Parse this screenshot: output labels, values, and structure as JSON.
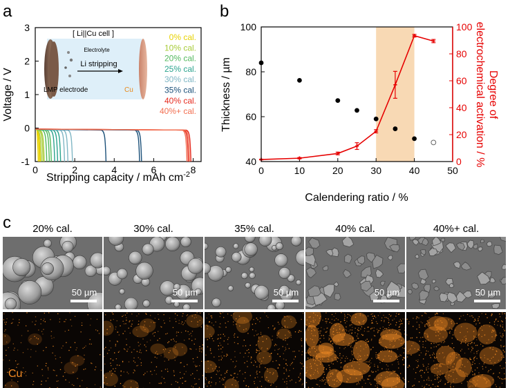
{
  "panel_labels": {
    "a": "a",
    "b": "b",
    "c": "c"
  },
  "panel_a": {
    "inset": {
      "cell_title": "[ Li||Cu cell ]",
      "electrolyte_label": "Electrolyte",
      "process_label": "Li stripping",
      "electrode_label": "LMP electrode",
      "cu_label": "Cu"
    },
    "legend": [
      {
        "label": "0% cal.",
        "color": "#e8d200"
      },
      {
        "label": "10% cal.",
        "color": "#a8cc3a"
      },
      {
        "label": "20% cal.",
        "color": "#52b85e"
      },
      {
        "label": "25% cal.",
        "color": "#2aa38d"
      },
      {
        "label": "30% cal.",
        "color": "#7fb6c4"
      },
      {
        "label": "35% cal.",
        "color": "#1a4f78"
      },
      {
        "label": "40% cal.",
        "color": "#e62a1e"
      },
      {
        "label": "40%+ cal.",
        "color": "#f26f51"
      }
    ]
  },
  "chart_data": [
    {
      "type": "line",
      "xlabel": "Stripping capacity / mAh cm",
      "xlabel_sup": "-2",
      "ylabel": "Voltage / V",
      "xlim": [
        0,
        8.4
      ],
      "ylim": [
        -1,
        3
      ],
      "xticks": [
        "0",
        "2",
        "4",
        "6",
        "8"
      ],
      "yticks": [
        "-1",
        "0",
        "1",
        "2",
        "3"
      ],
      "series": [
        {
          "name": "0% cal.",
          "curves": [
            0.12,
            0.18,
            0.22
          ]
        },
        {
          "name": "10% cal.",
          "curves": [
            0.28,
            0.36,
            0.42
          ]
        },
        {
          "name": "20% cal.",
          "curves": [
            0.55,
            0.68,
            0.78
          ]
        },
        {
          "name": "25% cal.",
          "curves": [
            0.95,
            1.1,
            1.25
          ]
        },
        {
          "name": "30% cal.",
          "curves": [
            1.45,
            1.62,
            1.85
          ]
        },
        {
          "name": "35% cal.",
          "curves": [
            3.55,
            5.25,
            5.35
          ]
        },
        {
          "name": "40% cal.",
          "curves": [
            7.72,
            7.85
          ]
        },
        {
          "name": "40%+ cal.",
          "curves": [
            7.65,
            7.78
          ]
        }
      ]
    },
    {
      "type": "scatter",
      "xlabel": "Calendering ratio / %",
      "ylabel": "Thickness / µm",
      "y2label_line1": "Degree of",
      "y2label_line2": "electrochemical activation / %",
      "xlim": [
        0,
        50
      ],
      "ylim": [
        40,
        100
      ],
      "y2lim": [
        0,
        100
      ],
      "xticks": [
        "0",
        "10",
        "20",
        "30",
        "40",
        "50"
      ],
      "yticks": [
        "40",
        "60",
        "80",
        "100"
      ],
      "y2ticks": [
        "0",
        "20",
        "40",
        "60",
        "80",
        "100"
      ],
      "highlight_range": [
        30,
        40
      ],
      "thickness": {
        "x": [
          0,
          10,
          20,
          25,
          30,
          35,
          40
        ],
        "y": [
          84,
          76.2,
          67.2,
          62.8,
          59,
          54.6,
          50.2
        ]
      },
      "thickness_open": {
        "x": [
          45
        ],
        "y": [
          48.5
        ]
      },
      "activation": {
        "x": [
          0,
          10,
          20,
          25,
          30,
          35,
          40,
          45
        ],
        "y": [
          1.5,
          2.5,
          6,
          11.5,
          22.5,
          57,
          93.5,
          89.5
        ],
        "err": [
          0.3,
          0.5,
          1,
          2.5,
          1.2,
          10,
          1,
          1.2
        ]
      },
      "colors": {
        "thickness": "#000000",
        "activation": "#e60000",
        "highlight": "#f8d9b4"
      }
    }
  ],
  "panel_c": {
    "columns": [
      {
        "label": "20% cal.",
        "scale": "50 µm"
      },
      {
        "label": "30% cal.",
        "scale": "50 µm"
      },
      {
        "label": "35% cal.",
        "scale": "50 µm"
      },
      {
        "label": "40% cal.",
        "scale": "50 µm"
      },
      {
        "label": "40%+ cal.",
        "scale": "50 µm"
      }
    ],
    "eds_element": "Cu",
    "eds_density": [
      0.08,
      0.25,
      0.35,
      0.75,
      0.55
    ],
    "eds_color": "#f08a24"
  }
}
